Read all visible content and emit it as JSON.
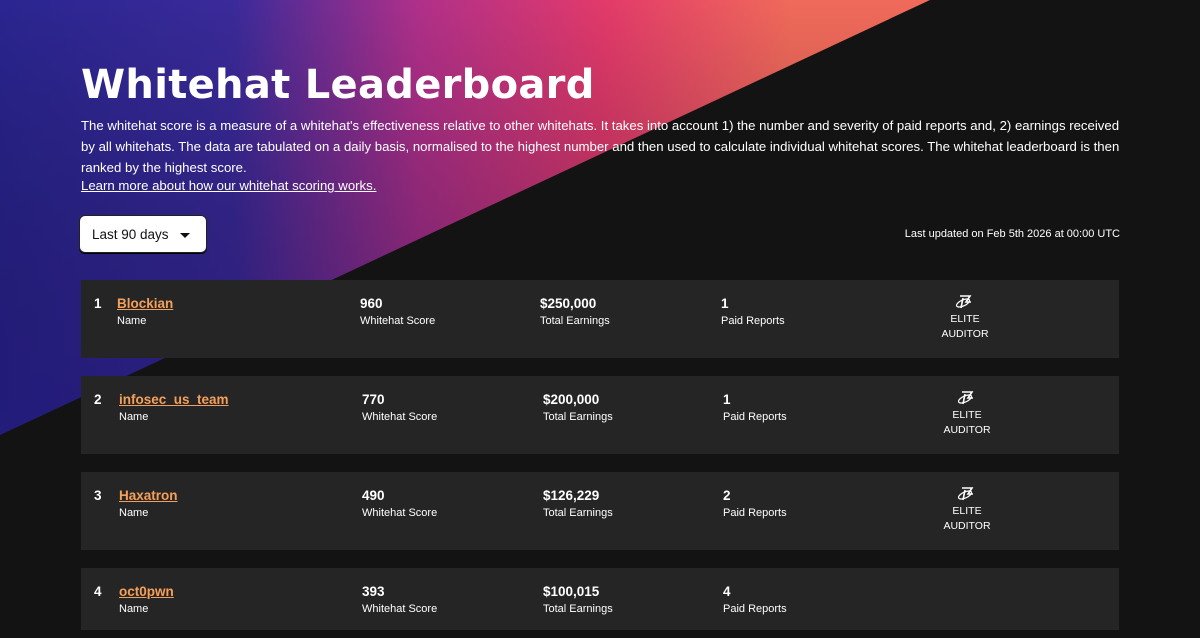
{
  "page": {
    "title": "Whitehat Leaderboard",
    "description": "The whitehat score is a measure of a whitehat's effectiveness relative to other whitehats. It takes into account 1) the number and severity of paid reports and, 2) earnings received by all whitehats. The data are tabulated on a daily basis, normalised to the highest number and then used to calculate individual whitehat scores. The whitehat leaderboard is then ranked by the highest score.",
    "learn_more": "Learn more about how our whitehat scoring works.",
    "filter": {
      "selected": "Last 90 days"
    },
    "last_updated": "Last updated on Feb 5th 2026 at 00:00 UTC"
  },
  "labels": {
    "name": "Name",
    "score": "Whitehat Score",
    "earnings": "Total Earnings",
    "reports": "Paid Reports"
  },
  "rows": [
    {
      "rank": "1",
      "name": "Blockian",
      "score": "960",
      "earnings": "$250,000",
      "reports": "1",
      "badge_line1": "ELITE",
      "badge_line2": "AUDITOR",
      "badge_icon": "elite-auditor-icon"
    },
    {
      "rank": "2",
      "name": "infosec_us_team",
      "score": "770",
      "earnings": "$200,000",
      "reports": "1",
      "badge_line1": "ELITE",
      "badge_line2": "AUDITOR",
      "badge_icon": "elite-auditor-icon"
    },
    {
      "rank": "3",
      "name": "Haxatron",
      "score": "490",
      "earnings": "$126,229",
      "reports": "2",
      "badge_line1": "ELITE",
      "badge_line2": "AUDITOR",
      "badge_icon": "elite-auditor-icon"
    },
    {
      "rank": "4",
      "name": "oct0pwn",
      "score": "393",
      "earnings": "$100,015",
      "reports": "4"
    }
  ],
  "colors": {
    "background": "#131313",
    "row": "#252525",
    "link": "#f5a05a",
    "gradient_blue": "#2a2590",
    "gradient_pink": "#e23a6a",
    "gradient_orange": "#f06a5a"
  }
}
